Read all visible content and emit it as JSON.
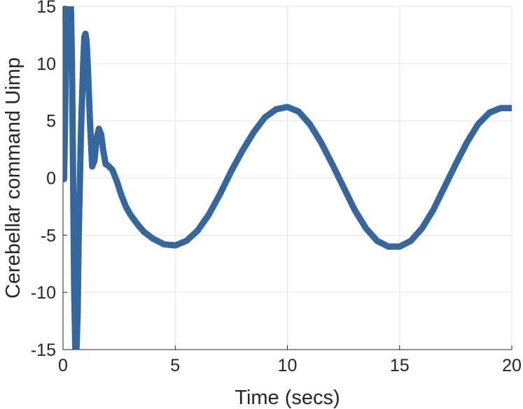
{
  "chart_data": {
    "type": "line",
    "title": "",
    "xlabel": "Time (secs)",
    "ylabel": "Cerebellar command Uimp",
    "xlim": [
      0,
      20
    ],
    "ylim": [
      -15,
      15
    ],
    "xticks": [
      0,
      5,
      10,
      15,
      20
    ],
    "yticks": [
      -15,
      -10,
      -5,
      0,
      5,
      10,
      15
    ],
    "xtick_labels": [
      "0",
      "5",
      "10",
      "15",
      "20"
    ],
    "ytick_labels": [
      "-15",
      "-10",
      "-5",
      "0",
      "5",
      "10",
      "15"
    ],
    "grid": true,
    "series": [
      {
        "color": "#35679e",
        "x": [
          0,
          0.05,
          0.1,
          0.15,
          0.2,
          0.25,
          0.3,
          0.35,
          0.4,
          0.45,
          0.5,
          0.55,
          0.6,
          0.65,
          0.7,
          0.8,
          0.9,
          0.95,
          1.0,
          1.05,
          1.1,
          1.2,
          1.3,
          1.4,
          1.5,
          1.6,
          1.7,
          1.8,
          1.9,
          2.0,
          2.1,
          2.2,
          2.4,
          2.6,
          2.8,
          3.0,
          3.3,
          3.6,
          4.0,
          4.5,
          5.0,
          5.5,
          6.0,
          6.5,
          7.0,
          7.5,
          8.0,
          8.5,
          9.0,
          9.5,
          10.0,
          10.5,
          11.0,
          11.5,
          12.0,
          12.5,
          13.0,
          13.5,
          14.0,
          14.5,
          15.0,
          15.5,
          16.0,
          16.5,
          17.0,
          17.5,
          18.0,
          18.5,
          19.0,
          19.5,
          20.0
        ],
        "y": [
          0,
          -0.1,
          6,
          15,
          15,
          15,
          15,
          15,
          10,
          0,
          -10,
          -15,
          -15,
          -12,
          -5,
          4,
          10,
          12.3,
          12.6,
          12,
          10,
          5,
          1,
          1.5,
          3.5,
          4.3,
          3.8,
          2.3,
          1.2,
          1.1,
          0.9,
          0.7,
          -0.3,
          -1.5,
          -2.5,
          -3.2,
          -4.0,
          -4.7,
          -5.3,
          -5.8,
          -5.9,
          -5.5,
          -4.6,
          -3.2,
          -1.4,
          0.6,
          2.4,
          4.0,
          5.3,
          6.0,
          6.2,
          5.8,
          4.7,
          3.1,
          1.2,
          -0.8,
          -2.8,
          -4.4,
          -5.5,
          -6.0,
          -6.0,
          -5.5,
          -4.4,
          -2.8,
          -0.8,
          1.2,
          3.1,
          4.7,
          5.7,
          6.1,
          6.1
        ]
      }
    ]
  }
}
